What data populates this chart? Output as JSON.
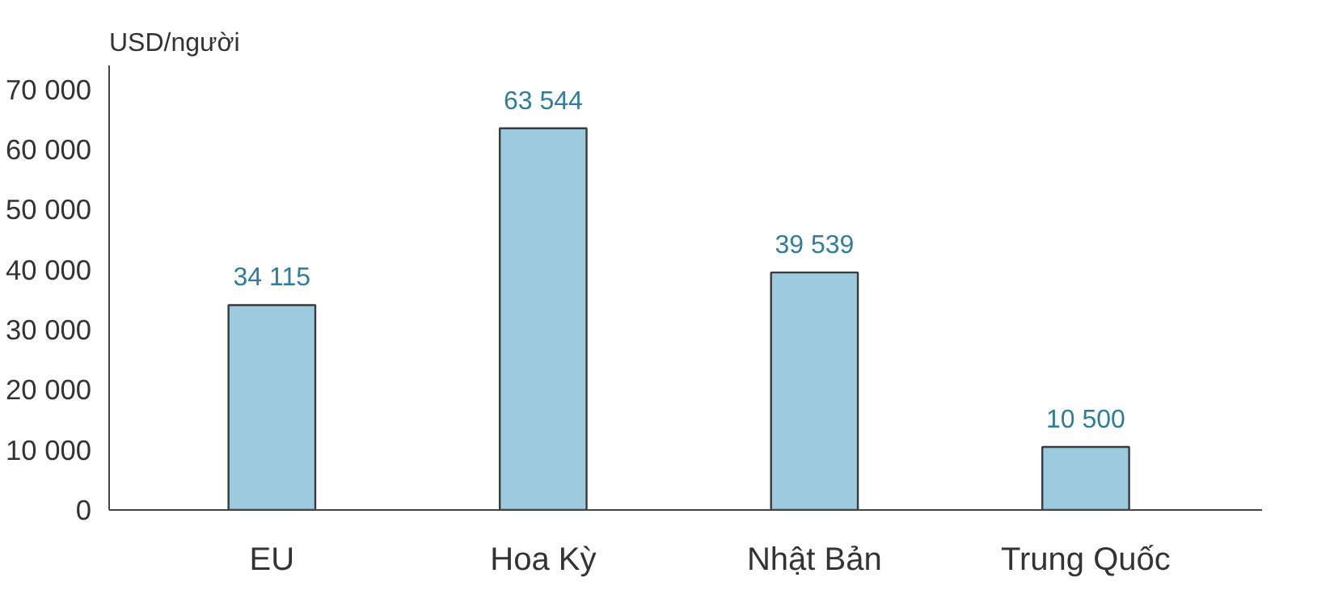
{
  "chart_data": {
    "type": "bar",
    "ylabel": "USD/người",
    "categories": [
      "EU",
      "Hoa Kỳ",
      "Nhật Bản",
      "Trung Quốc"
    ],
    "values": [
      34115,
      63544,
      39539,
      10500
    ],
    "value_labels": [
      "34 115",
      "63 544",
      "39 539",
      "10 500"
    ],
    "color": "#9ccbe0",
    "ylim": [
      0,
      74000
    ],
    "yticks": [
      {
        "value": 0,
        "label": "0"
      },
      {
        "value": 10000,
        "label": "10 000"
      },
      {
        "value": 20000,
        "label": "20 000"
      },
      {
        "value": 30000,
        "label": "30 000"
      },
      {
        "value": 40000,
        "label": "40 000"
      },
      {
        "value": 50000,
        "label": "50 000"
      },
      {
        "value": 60000,
        "label": "60 000"
      },
      {
        "value": 70000,
        "label": "70 000"
      }
    ],
    "grid": false
  }
}
